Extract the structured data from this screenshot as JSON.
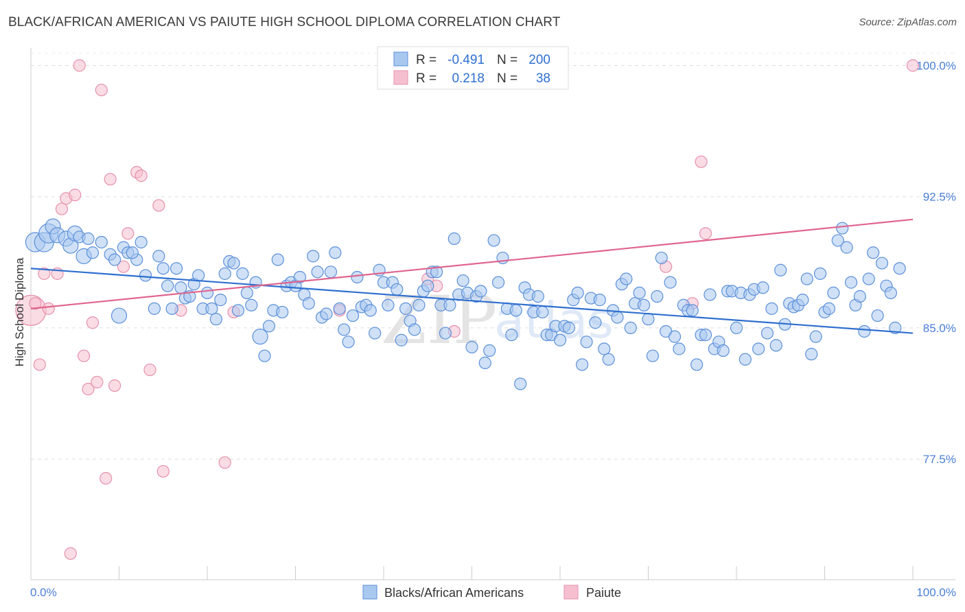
{
  "title": "BLACK/AFRICAN AMERICAN VS PAIUTE HIGH SCHOOL DIPLOMA CORRELATION CHART",
  "source": "Source: ZipAtlas.com",
  "watermark": "ZIPatlas",
  "colors": {
    "blue_fill": "#a9c8f0",
    "blue_stroke": "#5b8fd8",
    "blue_line": "#2f6fcf",
    "pink_fill": "#f6bfd0",
    "pink_stroke": "#e690ac",
    "pink_line": "#e0648e",
    "axis_label": "#4a7fd4",
    "grid": "#dddddd"
  },
  "legend": {
    "r_label": "R =",
    "n_label": "N =",
    "series": [
      {
        "name": "Blacks/African Americans",
        "r": "-0.491",
        "n": "200"
      },
      {
        "name": "Paiute",
        "r": "0.218",
        "n": "38"
      }
    ]
  },
  "chart_data": {
    "type": "scatter",
    "title": "BLACK/AFRICAN AMERICAN VS PAIUTE HIGH SCHOOL DIPLOMA CORRELATION CHART",
    "xlabel": "",
    "ylabel": "High School Diploma",
    "xlim": [
      0,
      100
    ],
    "ylim": [
      70.6,
      101
    ],
    "x_tick_labels": [
      "0.0%",
      "100.0%"
    ],
    "y_ticks": [
      77.5,
      85.0,
      92.5,
      100.0
    ],
    "y_tick_labels": [
      "77.5%",
      "85.0%",
      "92.5%",
      "100.0%"
    ],
    "grid": true,
    "series": [
      {
        "name": "Blacks/African Americans",
        "trend": {
          "x": [
            0,
            100
          ],
          "y": [
            88.4,
            84.7
          ]
        },
        "points": [
          [
            0.5,
            89.9,
            3
          ],
          [
            1.5,
            89.9,
            3
          ],
          [
            2,
            90.4,
            3
          ],
          [
            2.5,
            90.8,
            2
          ],
          [
            3,
            90.3,
            2
          ],
          [
            4,
            90.1,
            2
          ],
          [
            4.5,
            89.7,
            2
          ],
          [
            5,
            90.4,
            2
          ],
          [
            5.5,
            90.2,
            1
          ],
          [
            6,
            89.1,
            2
          ],
          [
            6.5,
            90.1,
            1
          ],
          [
            7,
            89.3,
            1
          ],
          [
            8,
            89.9,
            1
          ],
          [
            9,
            89.2,
            1
          ],
          [
            9.5,
            88.9,
            1
          ],
          [
            10,
            85.7,
            2
          ],
          [
            10.5,
            89.6,
            1
          ],
          [
            11,
            89.3,
            1
          ],
          [
            12,
            88.9,
            1
          ],
          [
            11.5,
            89.3,
            1
          ],
          [
            12.5,
            89.9,
            1
          ],
          [
            13,
            88,
            1
          ],
          [
            14,
            86.1,
            1
          ],
          [
            14.5,
            89.1,
            1
          ],
          [
            15,
            88.4,
            1
          ],
          [
            15.5,
            87.4,
            1
          ],
          [
            16,
            86.1,
            1
          ],
          [
            16.5,
            88.4,
            1
          ],
          [
            17,
            87.3,
            1
          ],
          [
            17.5,
            86.7,
            1
          ],
          [
            18,
            86.8,
            1
          ],
          [
            18.5,
            87.5,
            1
          ],
          [
            19,
            88,
            1
          ],
          [
            19.5,
            86.1,
            1
          ],
          [
            20,
            87,
            1
          ],
          [
            20.5,
            86.1,
            1
          ],
          [
            21,
            85.5,
            1
          ],
          [
            21.5,
            86.6,
            1
          ],
          [
            22,
            88.1,
            1
          ],
          [
            22.5,
            88.8,
            1
          ],
          [
            23,
            88.7,
            1
          ],
          [
            23.5,
            86,
            1
          ],
          [
            24,
            88.1,
            1
          ],
          [
            24.5,
            87,
            1
          ],
          [
            25,
            86.3,
            1
          ],
          [
            25.5,
            87.6,
            1
          ],
          [
            26,
            84.5,
            2
          ],
          [
            26.5,
            83.4,
            1
          ],
          [
            27,
            85.1,
            1
          ],
          [
            27.5,
            86,
            1
          ],
          [
            28,
            88.9,
            1
          ],
          [
            28.5,
            85.9,
            1
          ],
          [
            29,
            87.4,
            1
          ],
          [
            29.5,
            87.6,
            1
          ],
          [
            30,
            87.4,
            1
          ],
          [
            30.5,
            87.9,
            1
          ],
          [
            31,
            86.9,
            1
          ],
          [
            31.5,
            86.4,
            1
          ],
          [
            32,
            89.1,
            1
          ],
          [
            32.5,
            88.2,
            1
          ],
          [
            33,
            85.6,
            1
          ],
          [
            33.5,
            85.8,
            1
          ],
          [
            34,
            88.2,
            1
          ],
          [
            34.5,
            89.3,
            1
          ],
          [
            35,
            86.1,
            1
          ],
          [
            35.5,
            84.9,
            1
          ],
          [
            36,
            84.2,
            1
          ],
          [
            36.5,
            85.7,
            1
          ],
          [
            37,
            87.9,
            1
          ],
          [
            37.5,
            86.2,
            1
          ],
          [
            38,
            86.3,
            1
          ],
          [
            38.5,
            86,
            1
          ],
          [
            39,
            84.7,
            1
          ],
          [
            39.5,
            88.3,
            1
          ],
          [
            40,
            87.6,
            1
          ],
          [
            40.5,
            86.3,
            1
          ],
          [
            41,
            87.6,
            1
          ],
          [
            41.5,
            87.2,
            1
          ],
          [
            42,
            84.3,
            1
          ],
          [
            42.5,
            86.1,
            1
          ],
          [
            43,
            85.4,
            1
          ],
          [
            43.5,
            84.9,
            1
          ],
          [
            44,
            86.3,
            1
          ],
          [
            44.5,
            87.1,
            1
          ],
          [
            45,
            87.4,
            1
          ],
          [
            45.5,
            88.2,
            1
          ],
          [
            46,
            88.2,
            1
          ],
          [
            46.5,
            86.3,
            1
          ],
          [
            47,
            84.7,
            1
          ],
          [
            47.5,
            86.3,
            1
          ],
          [
            48,
            90.1,
            1
          ],
          [
            48.5,
            86.9,
            1
          ],
          [
            49,
            87.7,
            1
          ],
          [
            49.5,
            87,
            1
          ],
          [
            50,
            83.9,
            1
          ],
          [
            50.5,
            86.8,
            1
          ],
          [
            51,
            87.1,
            1
          ],
          [
            51.5,
            83,
            1
          ],
          [
            52,
            83.7,
            1
          ],
          [
            52.5,
            90,
            1
          ],
          [
            53,
            87.6,
            1
          ],
          [
            53.5,
            89,
            1
          ],
          [
            54,
            86.1,
            1
          ],
          [
            54.5,
            84.6,
            1
          ],
          [
            55,
            86,
            1
          ],
          [
            55.5,
            81.8,
            1
          ],
          [
            56,
            87.3,
            1
          ],
          [
            56.5,
            86.9,
            1
          ],
          [
            57,
            85.9,
            1
          ],
          [
            57.5,
            86.8,
            1
          ],
          [
            58,
            85.9,
            1
          ],
          [
            58.5,
            84.6,
            1
          ],
          [
            59,
            84.6,
            1
          ],
          [
            59.5,
            85.1,
            1
          ],
          [
            60,
            84.3,
            1
          ],
          [
            60.5,
            85.1,
            1
          ],
          [
            61,
            85,
            1
          ],
          [
            61.5,
            86.6,
            1
          ],
          [
            62,
            87,
            1
          ],
          [
            62.5,
            82.9,
            1
          ],
          [
            63,
            84.2,
            1
          ],
          [
            63.5,
            86.7,
            1
          ],
          [
            64,
            85.3,
            1
          ],
          [
            64.5,
            86.6,
            1
          ],
          [
            65,
            83.8,
            1
          ],
          [
            65.5,
            83.2,
            1
          ],
          [
            66,
            86,
            1
          ],
          [
            66.5,
            85.6,
            1
          ],
          [
            67,
            87.5,
            1
          ],
          [
            67.5,
            87.8,
            1
          ],
          [
            68,
            85,
            1
          ],
          [
            68.5,
            86.4,
            1
          ],
          [
            69,
            87,
            1
          ],
          [
            69.5,
            86.3,
            1
          ],
          [
            70,
            85.5,
            1
          ],
          [
            70.5,
            83.4,
            1
          ],
          [
            71,
            86.8,
            1
          ],
          [
            71.5,
            89,
            1
          ],
          [
            72,
            84.8,
            1
          ],
          [
            72.5,
            87.6,
            1
          ],
          [
            73,
            84.5,
            1
          ],
          [
            73.5,
            83.8,
            1
          ],
          [
            74,
            86.3,
            1
          ],
          [
            74.5,
            86,
            1
          ],
          [
            75,
            86,
            1
          ],
          [
            75.5,
            82.9,
            1
          ],
          [
            76,
            84.6,
            1
          ],
          [
            76.5,
            84.6,
            1
          ],
          [
            77,
            86.9,
            1
          ],
          [
            77.5,
            83.8,
            1
          ],
          [
            78,
            84.2,
            1
          ],
          [
            78.5,
            83.7,
            1
          ],
          [
            79,
            87.1,
            1
          ],
          [
            79.5,
            87.1,
            1
          ],
          [
            80,
            85,
            1
          ],
          [
            80.5,
            87,
            1
          ],
          [
            81,
            83.2,
            1
          ],
          [
            81.5,
            86.9,
            1
          ],
          [
            82,
            87.2,
            1
          ],
          [
            82.5,
            83.8,
            1
          ],
          [
            83,
            87.3,
            1
          ],
          [
            83.5,
            84.7,
            1
          ],
          [
            84,
            86.1,
            1
          ],
          [
            84.5,
            84,
            1
          ],
          [
            85,
            88.3,
            1
          ],
          [
            85.5,
            85.2,
            1
          ],
          [
            86,
            86.4,
            1
          ],
          [
            86.5,
            86.2,
            1
          ],
          [
            87,
            86.3,
            1
          ],
          [
            87.5,
            86.6,
            1
          ],
          [
            88,
            87.8,
            1
          ],
          [
            88.5,
            83.5,
            1
          ],
          [
            89,
            84.5,
            1
          ],
          [
            89.5,
            88.1,
            1
          ],
          [
            90,
            85.9,
            1
          ],
          [
            90.5,
            86.1,
            1
          ],
          [
            91,
            87,
            1
          ],
          [
            91.5,
            90,
            1
          ],
          [
            92,
            90.7,
            1
          ],
          [
            92.5,
            89.6,
            1
          ],
          [
            93,
            87.6,
            1
          ],
          [
            93.5,
            86.3,
            1
          ],
          [
            94,
            86.8,
            1
          ],
          [
            94.5,
            84.8,
            1
          ],
          [
            95,
            87.8,
            1
          ],
          [
            95.5,
            89.3,
            1
          ],
          [
            96,
            85.7,
            1
          ],
          [
            96.5,
            88.7,
            1
          ],
          [
            97,
            87.4,
            1
          ],
          [
            97.5,
            87,
            1
          ],
          [
            98,
            85,
            1
          ],
          [
            98.5,
            88.4,
            1
          ]
        ]
      },
      {
        "name": "Paiute",
        "trend": {
          "x": [
            0,
            100
          ],
          "y": [
            86.1,
            91.2
          ]
        },
        "points": [
          [
            0,
            86,
            4
          ],
          [
            0.5,
            86.4,
            1
          ],
          [
            1,
            82.9,
            1
          ],
          [
            1.5,
            88.1,
            1
          ],
          [
            2,
            86.1,
            1
          ],
          [
            3,
            88.1,
            1
          ],
          [
            3.5,
            91.8,
            1
          ],
          [
            4,
            92.4,
            1
          ],
          [
            4.5,
            72.1,
            1
          ],
          [
            5,
            92.6,
            1
          ],
          [
            5.5,
            100,
            1
          ],
          [
            6,
            83.4,
            1
          ],
          [
            6.5,
            81.5,
            1
          ],
          [
            7,
            85.3,
            1
          ],
          [
            7.5,
            81.9,
            1
          ],
          [
            8,
            98.6,
            1
          ],
          [
            8.5,
            76.4,
            1
          ],
          [
            9,
            93.5,
            1
          ],
          [
            9.5,
            81.7,
            1
          ],
          [
            10.5,
            88.5,
            1
          ],
          [
            11,
            90.4,
            1
          ],
          [
            12,
            93.9,
            1
          ],
          [
            12.5,
            93.7,
            1
          ],
          [
            13.5,
            82.6,
            1
          ],
          [
            14.5,
            92,
            1
          ],
          [
            15,
            76.8,
            1
          ],
          [
            17,
            86,
            1
          ],
          [
            22,
            77.3,
            1
          ],
          [
            23,
            85.9,
            1
          ],
          [
            35,
            86,
            1
          ],
          [
            45,
            87.8,
            1
          ],
          [
            46,
            87.4,
            1
          ],
          [
            48,
            84.8,
            1
          ],
          [
            72,
            88.5,
            1
          ],
          [
            75,
            86.4,
            1
          ],
          [
            76,
            94.5,
            1
          ],
          [
            76.5,
            90.4,
            1
          ],
          [
            100,
            100,
            1
          ]
        ]
      }
    ]
  }
}
